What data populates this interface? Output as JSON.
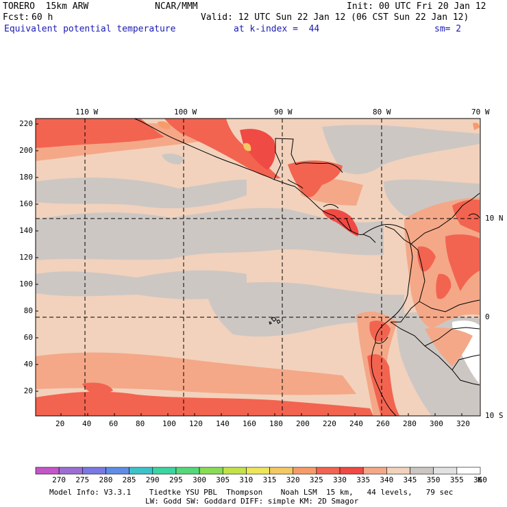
{
  "header": {
    "model": "TORERO  15km ARW",
    "center": "NCAR/MMM",
    "init": "Init: 00 UTC Fri 20 Jan 12",
    "fcst_label": "Fcst:",
    "fcst_value": "60 h",
    "valid": "Valid: 12 UTC Sun 22 Jan 12 (06 CST Sun 22 Jan 12)",
    "field": "Equivalent potential temperature",
    "level": "at k-index =  44",
    "smoothing": "sm= 2"
  },
  "map": {
    "top_lon_labels": [
      "110 W",
      "100 W",
      "90 W",
      "80 W",
      "70 W"
    ],
    "right_lat_labels": [
      "10 N",
      "0",
      "10 S"
    ],
    "y_grid_ticks": [
      "220",
      "200",
      "180",
      "160",
      "140",
      "120",
      "100",
      "80",
      "60",
      "40",
      "20"
    ],
    "x_grid_ticks": [
      "20",
      "40",
      "60",
      "80",
      "100",
      "120",
      "140",
      "160",
      "180",
      "200",
      "220",
      "240",
      "260",
      "280",
      "300",
      "320"
    ]
  },
  "colorbar": {
    "units": "K",
    "labels": [
      "270",
      "275",
      "280",
      "285",
      "290",
      "295",
      "300",
      "305",
      "310",
      "315",
      "320",
      "325",
      "330",
      "335",
      "340",
      "345",
      "350",
      "355",
      "360"
    ],
    "colors": [
      "#c455c8",
      "#9b6ed2",
      "#7a78e2",
      "#5f8de6",
      "#3cc2c8",
      "#3cd4a0",
      "#55d878",
      "#88dd55",
      "#c2e24a",
      "#ece65a",
      "#f4c864",
      "#f59c6a",
      "#f26450",
      "#f04a44",
      "#f4a888",
      "#f2d2bc",
      "#cdc7c4",
      "#e2e2e2",
      "#ffffff"
    ]
  },
  "footer": {
    "line1": "Model Info: V3.3.1    Tiedtke YSU PBL  Thompson    Noah LSM  15 km,   44 levels,   79 sec",
    "line2": "LW: Godd SW: Goddard DIFF: simple KM: 2D Smagor"
  }
}
